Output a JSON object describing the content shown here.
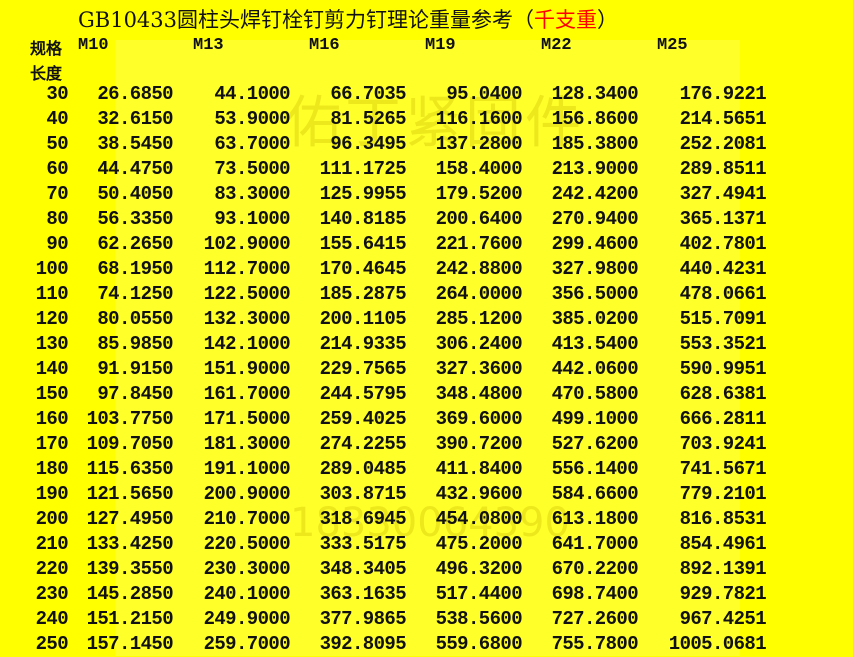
{
  "title": {
    "main": "GB10433圆柱头焊钉栓钉剪力钉理论重量参考（",
    "unit": "千支重",
    "close": "）"
  },
  "watermark": {
    "brand": "佑丁紧固件",
    "phone": "18330064390"
  },
  "colors": {
    "background": "#ffff00",
    "unit_text": "#ff0000"
  },
  "header": {
    "spec_label": "规格",
    "length_label": "长度",
    "columns": [
      "M10",
      "M13",
      "M16",
      "M19",
      "M22",
      "M25"
    ]
  },
  "rows": [
    [
      "30",
      "26.6850",
      "44.1000",
      "66.7035",
      "95.0400",
      "128.3400",
      "176.9221"
    ],
    [
      "40",
      "32.6150",
      "53.9000",
      "81.5265",
      "116.1600",
      "156.8600",
      "214.5651"
    ],
    [
      "50",
      "38.5450",
      "63.7000",
      "96.3495",
      "137.2800",
      "185.3800",
      "252.2081"
    ],
    [
      "60",
      "44.4750",
      "73.5000",
      "111.1725",
      "158.4000",
      "213.9000",
      "289.8511"
    ],
    [
      "70",
      "50.4050",
      "83.3000",
      "125.9955",
      "179.5200",
      "242.4200",
      "327.4941"
    ],
    [
      "80",
      "56.3350",
      "93.1000",
      "140.8185",
      "200.6400",
      "270.9400",
      "365.1371"
    ],
    [
      "90",
      "62.2650",
      "102.9000",
      "155.6415",
      "221.7600",
      "299.4600",
      "402.7801"
    ],
    [
      "100",
      "68.1950",
      "112.7000",
      "170.4645",
      "242.8800",
      "327.9800",
      "440.4231"
    ],
    [
      "110",
      "74.1250",
      "122.5000",
      "185.2875",
      "264.0000",
      "356.5000",
      "478.0661"
    ],
    [
      "120",
      "80.0550",
      "132.3000",
      "200.1105",
      "285.1200",
      "385.0200",
      "515.7091"
    ],
    [
      "130",
      "85.9850",
      "142.1000",
      "214.9335",
      "306.2400",
      "413.5400",
      "553.3521"
    ],
    [
      "140",
      "91.9150",
      "151.9000",
      "229.7565",
      "327.3600",
      "442.0600",
      "590.9951"
    ],
    [
      "150",
      "97.8450",
      "161.7000",
      "244.5795",
      "348.4800",
      "470.5800",
      "628.6381"
    ],
    [
      "160",
      "103.7750",
      "171.5000",
      "259.4025",
      "369.6000",
      "499.1000",
      "666.2811"
    ],
    [
      "170",
      "109.7050",
      "181.3000",
      "274.2255",
      "390.7200",
      "527.6200",
      "703.9241"
    ],
    [
      "180",
      "115.6350",
      "191.1000",
      "289.0485",
      "411.8400",
      "556.1400",
      "741.5671"
    ],
    [
      "190",
      "121.5650",
      "200.9000",
      "303.8715",
      "432.9600",
      "584.6600",
      "779.2101"
    ],
    [
      "200",
      "127.4950",
      "210.7000",
      "318.6945",
      "454.0800",
      "613.1800",
      "816.8531"
    ],
    [
      "210",
      "133.4250",
      "220.5000",
      "333.5175",
      "475.2000",
      "641.7000",
      "854.4961"
    ],
    [
      "220",
      "139.3550",
      "230.3000",
      "348.3405",
      "496.3200",
      "670.2200",
      "892.1391"
    ],
    [
      "230",
      "145.2850",
      "240.1000",
      "363.1635",
      "517.4400",
      "698.7400",
      "929.7821"
    ],
    [
      "240",
      "151.2150",
      "249.9000",
      "377.9865",
      "538.5600",
      "727.2600",
      "967.4251"
    ],
    [
      "250",
      "157.1450",
      "259.7000",
      "392.8095",
      "559.6800",
      "755.7800",
      "1005.0681"
    ]
  ]
}
